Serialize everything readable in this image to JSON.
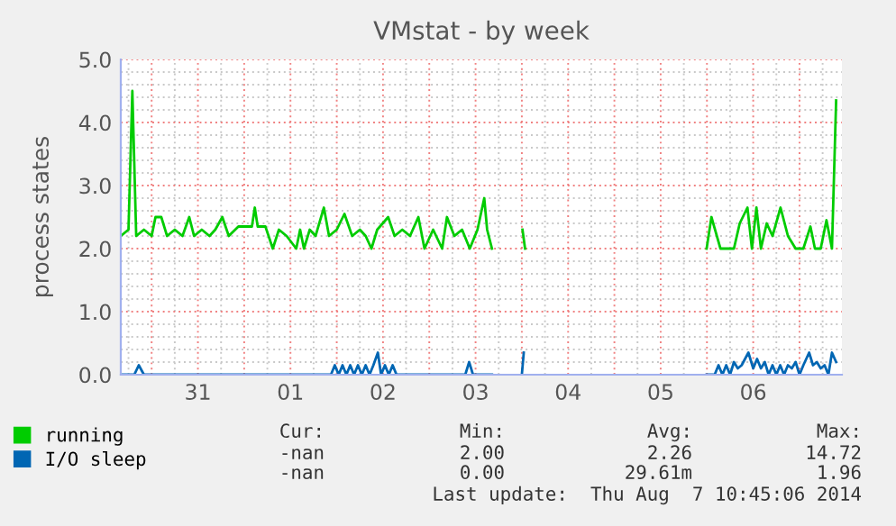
{
  "chart_data": {
    "type": "line",
    "title": "VMstat - by week",
    "ylabel": "process states",
    "xlim": [
      "2014-07-30T16:00",
      "2014-08-07T11:00"
    ],
    "xticks": [
      {
        "value": "2014-07-31T00:00",
        "label": null
      },
      {
        "value": "2014-07-31T12:00",
        "label": "31"
      },
      {
        "value": "2014-08-01T00:00",
        "label": null
      },
      {
        "value": "2014-08-01T12:00",
        "label": "01"
      },
      {
        "value": "2014-08-02T00:00",
        "label": null
      },
      {
        "value": "2014-08-02T12:00",
        "label": "02"
      },
      {
        "value": "2014-08-03T00:00",
        "label": null
      },
      {
        "value": "2014-08-03T12:00",
        "label": "03"
      },
      {
        "value": "2014-08-04T00:00",
        "label": null
      },
      {
        "value": "2014-08-04T12:00",
        "label": "04"
      },
      {
        "value": "2014-08-05T00:00",
        "label": null
      },
      {
        "value": "2014-08-05T12:00",
        "label": "05"
      },
      {
        "value": "2014-08-06T00:00",
        "label": null
      },
      {
        "value": "2014-08-06T12:00",
        "label": "06"
      },
      {
        "value": "2014-08-07T00:00",
        "label": null
      }
    ],
    "ylim": [
      0,
      5
    ],
    "yticks": [
      {
        "value": 0,
        "label": "0.0"
      },
      {
        "value": 1,
        "label": "1.0"
      },
      {
        "value": 2,
        "label": "2.0"
      },
      {
        "value": 3,
        "label": "3.0"
      },
      {
        "value": 4,
        "label": "4.0"
      },
      {
        "value": 5,
        "label": "5.0"
      }
    ],
    "grid": true,
    "legend": "bottom left",
    "series": [
      {
        "name": "running",
        "color": "#00cc00",
        "x": [
          "2014-07-30T16:00",
          "2014-07-30T18:00",
          "2014-07-30T19:00",
          "2014-07-30T20:00",
          "2014-07-30T22:00",
          "2014-07-31T00:00",
          "2014-07-31T01:00",
          "2014-07-31T02:30",
          "2014-07-31T04:00",
          "2014-07-31T06:00",
          "2014-07-31T08:00",
          "2014-07-31T09:45",
          "2014-07-31T11:00",
          "2014-07-31T13:00",
          "2014-07-31T15:00",
          "2014-07-31T16:30",
          "2014-07-31T18:20",
          "2014-07-31T20:00",
          "2014-07-31T22:30",
          "2014-08-01T02:00",
          "2014-08-01T02:45",
          "2014-08-01T03:30",
          "2014-08-01T05:30",
          "2014-08-01T07:25",
          "2014-08-01T09:00",
          "2014-08-01T11:00",
          "2014-08-01T13:30",
          "2014-08-01T14:30",
          "2014-08-01T15:30",
          "2014-08-01T17:00",
          "2014-08-01T18:30",
          "2014-08-01T20:40",
          "2014-08-01T22:00",
          "2014-08-02T00:00",
          "2014-08-02T02:00",
          "2014-08-02T04:00",
          "2014-08-02T06:00",
          "2014-08-02T07:30",
          "2014-08-02T09:00",
          "2014-08-02T10:30",
          "2014-08-02T13:20",
          "2014-08-02T15:00",
          "2014-08-02T17:00",
          "2014-08-02T19:00",
          "2014-08-02T21:10",
          "2014-08-02T22:45",
          "2014-08-03T01:00",
          "2014-08-03T03:20",
          "2014-08-03T04:35",
          "2014-08-03T06:30",
          "2014-08-03T08:30",
          "2014-08-03T10:30",
          "2014-08-03T12:30",
          "2014-08-03T14:15",
          "2014-08-03T15:00",
          "2014-08-03T16:15",
          "2014-08-03T20:00",
          "2014-08-04T00:10",
          "2014-08-04T00:50",
          "2014-08-05T12:00",
          "2014-08-05T23:55",
          "2014-08-06T01:10",
          "2014-08-06T03:30",
          "2014-08-06T05:00",
          "2014-08-06T07:00",
          "2014-08-06T08:30",
          "2014-08-06T10:30",
          "2014-08-06T11:40",
          "2014-08-06T12:50",
          "2014-08-06T14:00",
          "2014-08-06T15:30",
          "2014-08-06T17:00",
          "2014-08-06T19:05",
          "2014-08-06T21:00",
          "2014-08-06T23:00",
          "2014-08-07T01:00",
          "2014-08-07T02:50",
          "2014-08-07T04:00",
          "2014-08-07T05:30",
          "2014-08-07T07:00",
          "2014-08-07T08:25",
          "2014-08-07T09:30"
        ],
        "values": [
          2.2,
          2.3,
          4.5,
          2.2,
          2.3,
          2.2,
          2.5,
          2.5,
          2.2,
          2.3,
          2.2,
          2.5,
          2.2,
          2.3,
          2.2,
          2.3,
          2.5,
          2.2,
          2.35,
          2.35,
          2.65,
          2.35,
          2.35,
          2.0,
          2.3,
          2.2,
          2.0,
          2.3,
          2.0,
          2.3,
          2.2,
          2.65,
          2.2,
          2.3,
          2.55,
          2.2,
          2.3,
          2.2,
          2.0,
          2.3,
          2.5,
          2.2,
          2.3,
          2.2,
          2.5,
          2.0,
          2.3,
          2.0,
          2.5,
          2.2,
          2.3,
          2.0,
          2.3,
          2.8,
          2.3,
          2.0,
          null,
          2.3,
          2.0,
          null,
          2.0,
          2.5,
          2.0,
          2.0,
          2.0,
          2.4,
          2.65,
          2.0,
          2.65,
          2.0,
          2.4,
          2.2,
          2.65,
          2.2,
          2.0,
          2.0,
          2.35,
          2.0,
          2.0,
          2.45,
          2.0,
          4.35
        ]
      },
      {
        "name": "I/O sleep",
        "color": "#0066b3",
        "x": [
          "2014-07-30T16:00",
          "2014-07-30T19:30",
          "2014-07-30T20:40",
          "2014-07-30T22:00",
          "2014-08-01T22:30",
          "2014-08-01T23:30",
          "2014-08-02T00:30",
          "2014-08-02T01:30",
          "2014-08-02T02:30",
          "2014-08-02T03:30",
          "2014-08-02T04:30",
          "2014-08-02T05:30",
          "2014-08-02T06:30",
          "2014-08-02T07:30",
          "2014-08-02T08:30",
          "2014-08-02T09:30",
          "2014-08-02T10:40",
          "2014-08-02T11:30",
          "2014-08-02T12:30",
          "2014-08-02T13:30",
          "2014-08-02T14:30",
          "2014-08-02T15:30",
          "2014-08-03T09:20",
          "2014-08-03T10:20",
          "2014-08-03T11:20",
          "2014-08-03T16:15",
          "2014-08-03T20:00",
          "2014-08-04T00:00",
          "2014-08-04T00:30",
          "2014-08-05T12:00",
          "2014-08-05T23:55",
          "2014-08-06T02:00",
          "2014-08-06T03:00",
          "2014-08-06T04:00",
          "2014-08-06T05:00",
          "2014-08-06T06:00",
          "2014-08-06T07:00",
          "2014-08-06T08:00",
          "2014-08-06T09:00",
          "2014-08-06T10:45",
          "2014-08-06T12:00",
          "2014-08-06T13:00",
          "2014-08-06T14:00",
          "2014-08-06T15:00",
          "2014-08-06T16:00",
          "2014-08-06T17:00",
          "2014-08-06T18:00",
          "2014-08-06T19:00",
          "2014-08-06T20:00",
          "2014-08-06T21:00",
          "2014-08-06T22:00",
          "2014-08-06T23:00",
          "2014-08-07T00:00",
          "2014-08-07T01:00",
          "2014-08-07T02:30",
          "2014-08-07T03:30",
          "2014-08-07T04:30",
          "2014-08-07T05:30",
          "2014-08-07T06:30",
          "2014-08-07T07:30",
          "2014-08-07T08:25",
          "2014-08-07T09:30"
        ],
        "values": [
          0.0,
          0.0,
          0.15,
          0.0,
          0.0,
          0.15,
          0.0,
          0.15,
          0.0,
          0.15,
          0.0,
          0.15,
          0.0,
          0.15,
          0.0,
          0.15,
          0.35,
          0.0,
          0.15,
          0.0,
          0.15,
          0.0,
          0.0,
          0.2,
          0.0,
          0.0,
          null,
          0.0,
          0.35,
          null,
          0.0,
          0.0,
          0.15,
          0.0,
          0.15,
          0.0,
          0.2,
          0.1,
          0.15,
          0.35,
          0.1,
          0.25,
          0.1,
          0.2,
          0.0,
          0.15,
          0.0,
          0.15,
          0.0,
          0.15,
          0.1,
          0.2,
          0.0,
          0.15,
          0.35,
          0.15,
          0.2,
          0.1,
          0.15,
          0.0,
          0.35,
          0.2
        ]
      }
    ],
    "annotations": [
      "Cur:",
      "Min:",
      "Avg:",
      "Max:",
      "-nan",
      "2.00",
      "2.26",
      "14.72",
      "-nan",
      "0.00",
      "29.61m",
      "1.96",
      "Last update:  Thu Aug  7 10:45:06 2014"
    ]
  }
}
